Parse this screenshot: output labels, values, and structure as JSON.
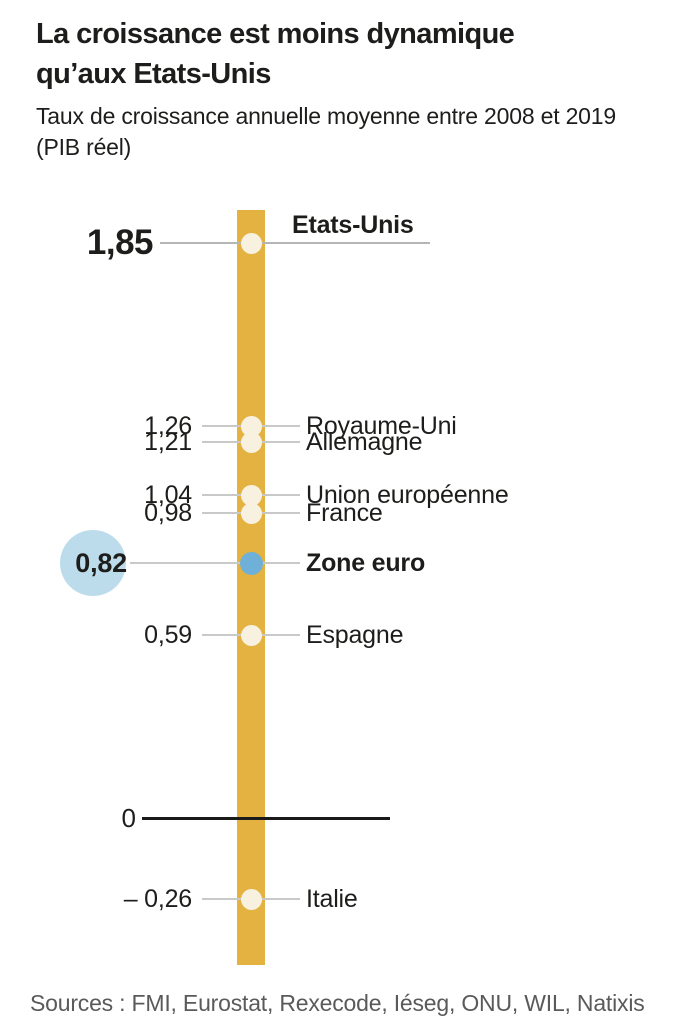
{
  "header": {
    "title_line1": "La croissance est moins dynamique",
    "title_line2": "qu’aux Etats-Unis",
    "subtitle_line1": "Taux de croissance annuelle moyenne entre 2008 et 2019",
    "subtitle_line2": "(PIB réel)"
  },
  "axis": {
    "zero_label": "0"
  },
  "footer": {
    "sources": "Sources : FMI, Eurostat, Rexecode, Iéseg, ONU, WIL, Natixis"
  },
  "colors": {
    "bar": "#e3b240",
    "dot": "#f8f1e0",
    "highlight_dot": "#6fb0d8",
    "highlight_halo": "#bcdcec",
    "connector": "#c9c9c9",
    "zero_line": "#1a1a1a",
    "text": "#1d1d1b",
    "sources_text": "#5a5a5a"
  },
  "chart_data": {
    "type": "scatter",
    "orientation": "vertical-number-line",
    "title": "La croissance est moins dynamique qu’aux Etats-Unis",
    "subtitle": "Taux de croissance annuelle moyenne entre 2008 et 2019 (PIB réel)",
    "baseline": 0,
    "axis_range_hint": [
      -0.26,
      1.85
    ],
    "legend_position": "none",
    "grid": false,
    "points": [
      {
        "label": "Etats-Unis",
        "value": 1.85,
        "display_value": "1,85",
        "emphasis": true,
        "highlighted": false
      },
      {
        "label": "Royaume-Uni",
        "value": 1.26,
        "display_value": "1,26",
        "emphasis": false,
        "highlighted": false
      },
      {
        "label": "Allemagne",
        "value": 1.21,
        "display_value": "1,21",
        "emphasis": false,
        "highlighted": false
      },
      {
        "label": "Union européenne",
        "value": 1.04,
        "display_value": "1,04",
        "emphasis": false,
        "highlighted": false
      },
      {
        "label": "France",
        "value": 0.98,
        "display_value": "0,98",
        "emphasis": false,
        "highlighted": false
      },
      {
        "label": "Zone euro",
        "value": 0.82,
        "display_value": "0,82",
        "emphasis": true,
        "highlighted": true
      },
      {
        "label": "Espagne",
        "value": 0.59,
        "display_value": "0,59",
        "emphasis": false,
        "highlighted": false
      },
      {
        "label": "Italie",
        "value": -0.26,
        "display_value": "– 0,26",
        "emphasis": false,
        "highlighted": false
      }
    ],
    "sources": "Sources : FMI, Eurostat, Rexecode, Iéseg, ONU, WIL, Natixis"
  }
}
